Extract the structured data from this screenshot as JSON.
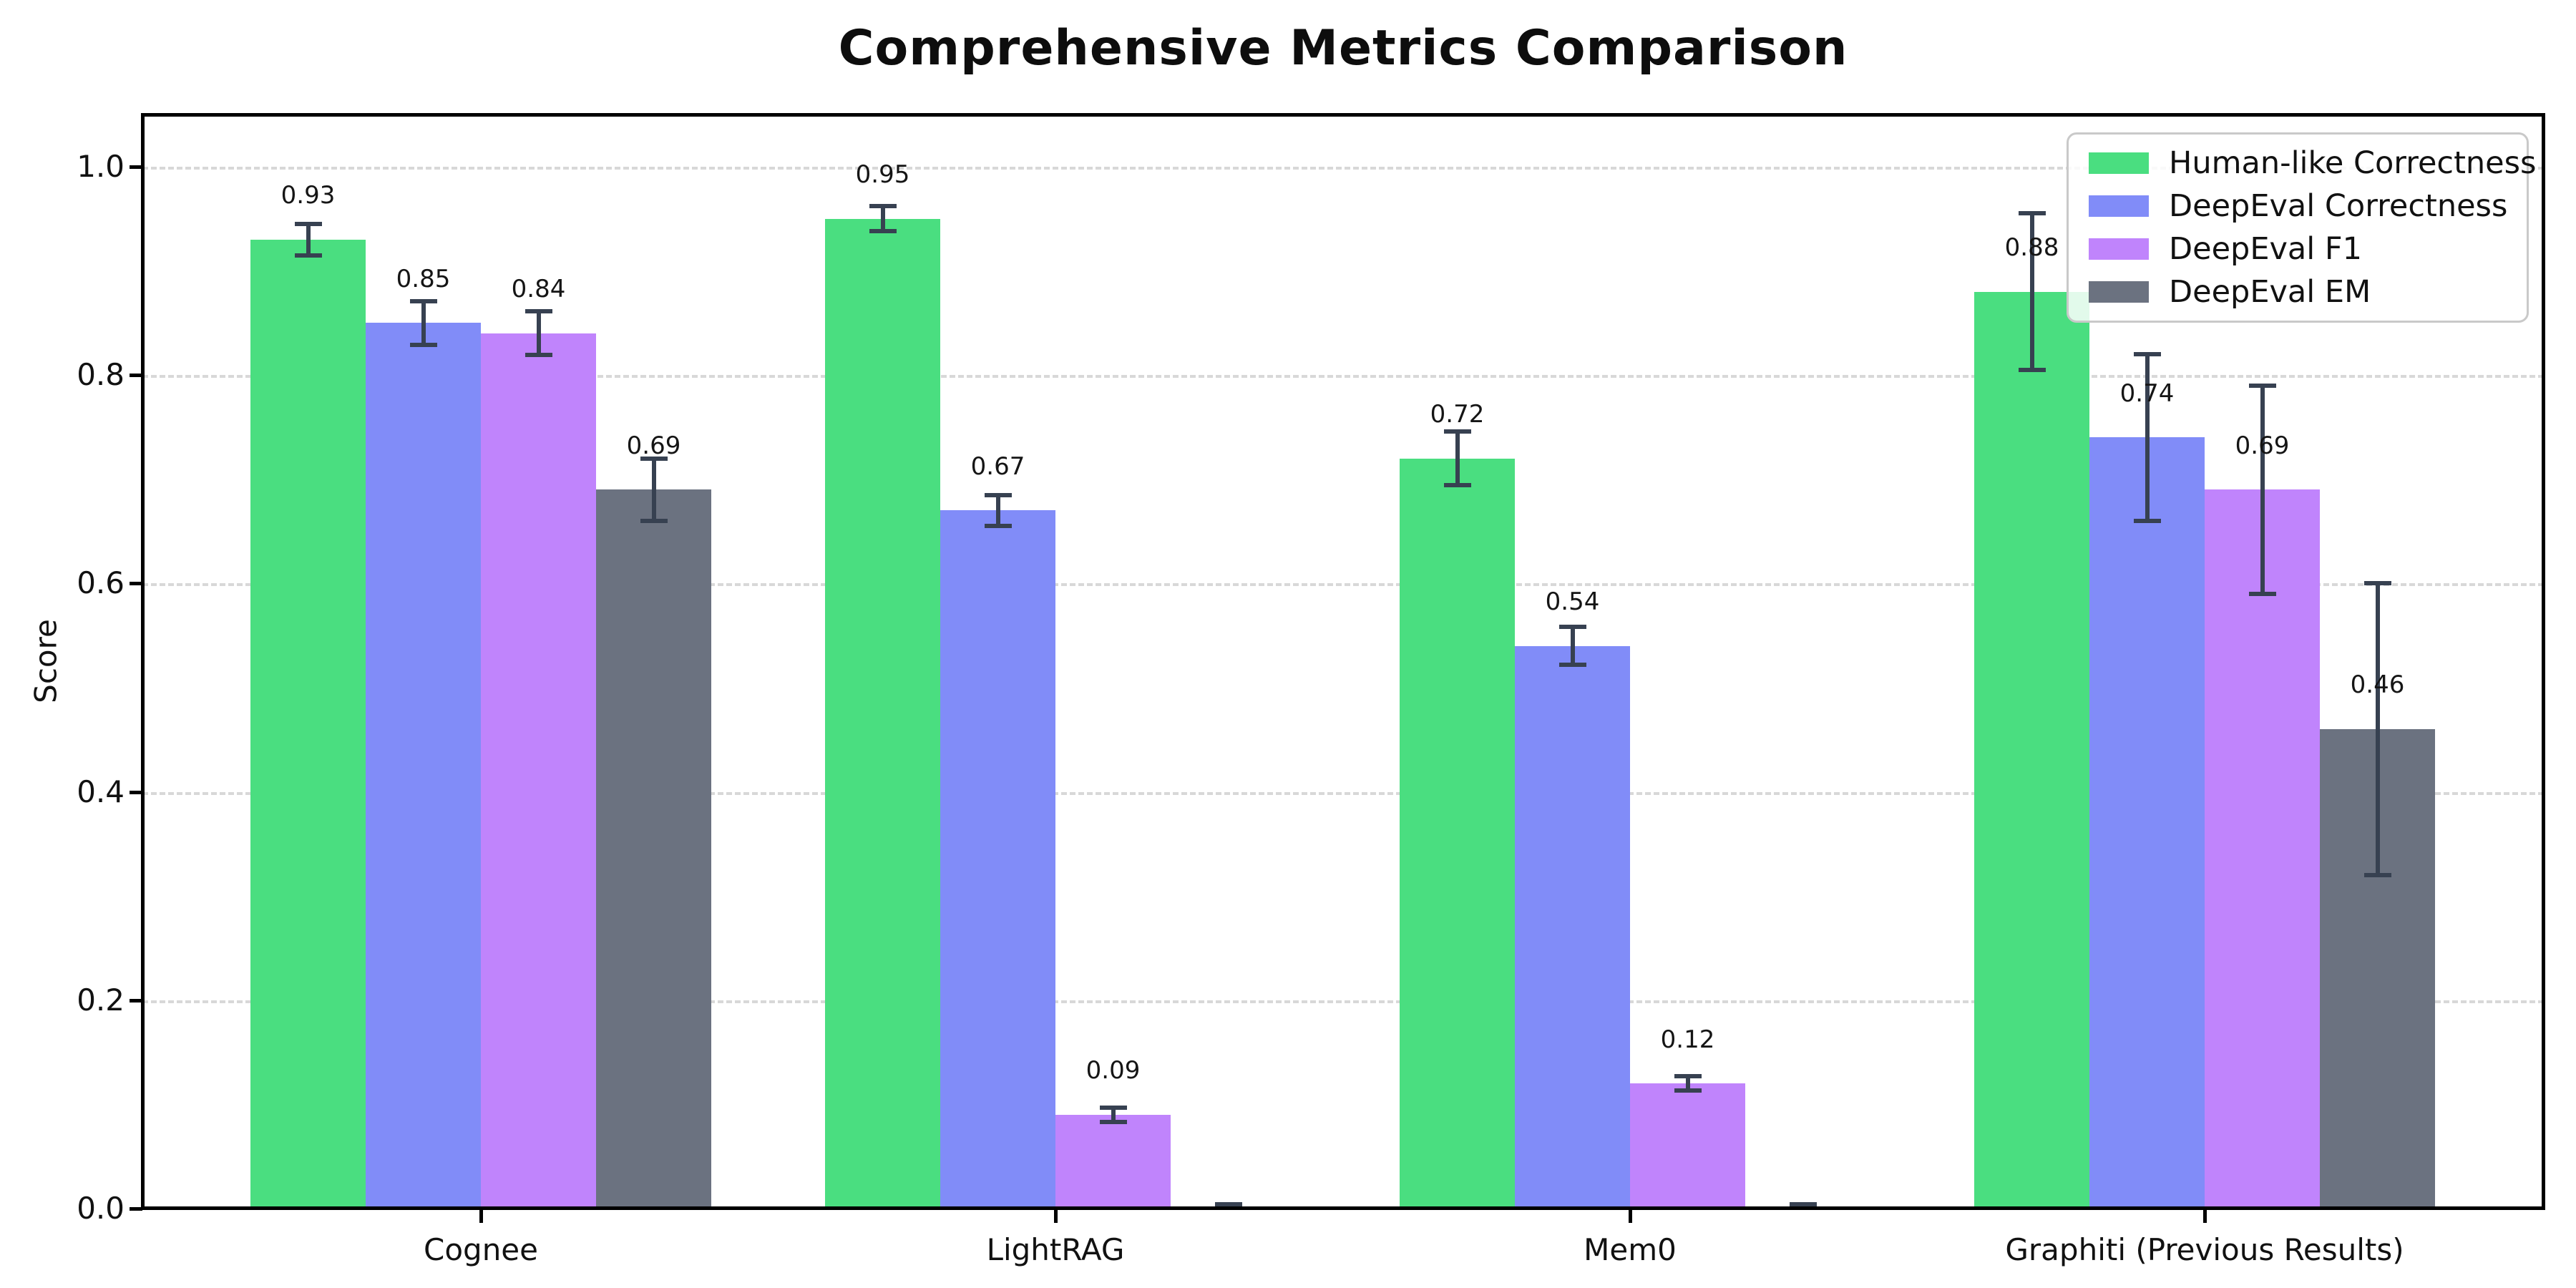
{
  "title": "Comprehensive Metrics Comparison",
  "chart_data": {
    "type": "bar",
    "title": "Comprehensive Metrics Comparison",
    "xlabel": "",
    "ylabel": "Score",
    "categories": [
      "Cognee",
      "LightRAG",
      "Mem0",
      "Graphiti (Previous Results)"
    ],
    "series": [
      {
        "name": "Human-like Correctness",
        "color": "#4ade80",
        "values": [
          0.93,
          0.95,
          0.72,
          0.88
        ],
        "errors": [
          0.015,
          0.012,
          0.026,
          0.075
        ],
        "labels": [
          "0.93",
          "0.95",
          "0.72",
          "0.88"
        ]
      },
      {
        "name": "DeepEval Correctness",
        "color": "#818cf8",
        "values": [
          0.85,
          0.67,
          0.54,
          0.74
        ],
        "errors": [
          0.021,
          0.015,
          0.018,
          0.08
        ],
        "labels": [
          "0.85",
          "0.67",
          "0.54",
          "0.74"
        ]
      },
      {
        "name": "DeepEval F1",
        "color": "#c084fc",
        "values": [
          0.84,
          0.09,
          0.12,
          0.69
        ],
        "errors": [
          0.021,
          0.007,
          0.007,
          0.1
        ],
        "labels": [
          "0.84",
          "0.09",
          "0.12",
          "0.69"
        ]
      },
      {
        "name": "DeepEval EM",
        "color": "#6b7280",
        "values": [
          0.69,
          0.0,
          0.0,
          0.46
        ],
        "errors": [
          0.03,
          0.004,
          0.004,
          0.14
        ],
        "labels": [
          "0.69",
          null,
          null,
          "0.46"
        ]
      }
    ],
    "ylim": [
      0,
      1.05
    ],
    "yticks": [
      "0.0",
      "0.2",
      "0.4",
      "0.6",
      "0.8",
      "1.0"
    ],
    "ytick_values": [
      0.0,
      0.2,
      0.4,
      0.6,
      0.8,
      1.0
    ],
    "grid": "dashed-horizontal",
    "grid_color": "#d8d8d8",
    "legend_position": "upper right",
    "error_bar_color": "#374151",
    "bar_label_offset": 0.03
  }
}
